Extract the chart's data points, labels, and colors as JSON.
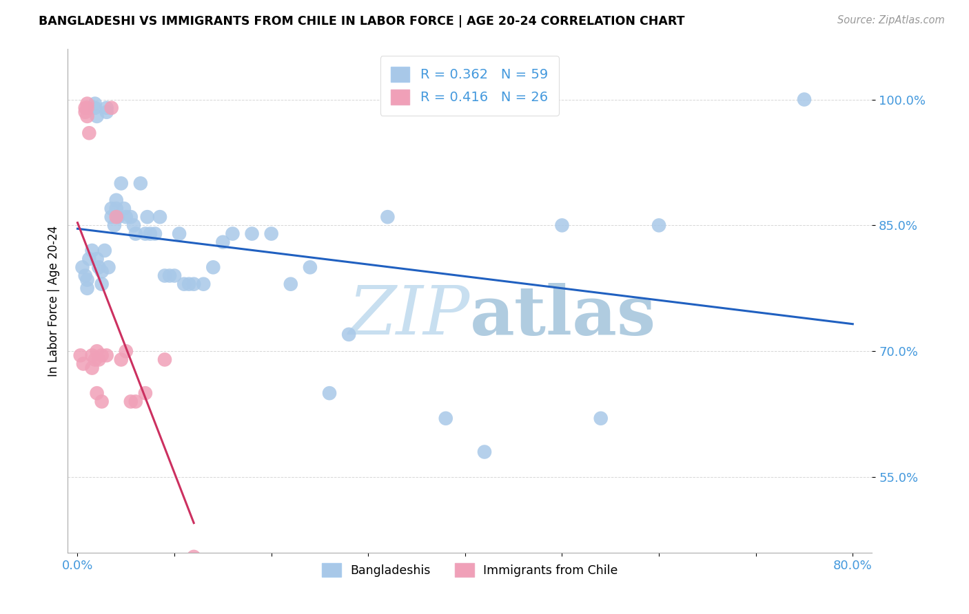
{
  "title": "BANGLADESHI VS IMMIGRANTS FROM CHILE IN LABOR FORCE | AGE 20-24 CORRELATION CHART",
  "source": "Source: ZipAtlas.com",
  "ylabel": "In Labor Force | Age 20-24",
  "xlim": [
    -0.01,
    0.82
  ],
  "ylim": [
    0.46,
    1.06
  ],
  "xtick_positions": [
    0.0,
    0.1,
    0.2,
    0.3,
    0.4,
    0.5,
    0.6,
    0.7,
    0.8
  ],
  "xticklabels": [
    "0.0%",
    "",
    "",
    "",
    "",
    "",
    "",
    "",
    "80.0%"
  ],
  "ytick_positions": [
    0.55,
    0.7,
    0.85,
    1.0
  ],
  "ytick_labels": [
    "55.0%",
    "70.0%",
    "85.0%",
    "100.0%"
  ],
  "blue_R": "0.362",
  "blue_N": "59",
  "pink_R": "0.416",
  "pink_N": "26",
  "legend_label_blue": "Bangladeshis",
  "legend_label_pink": "Immigrants from Chile",
  "blue_color": "#a8c8e8",
  "pink_color": "#f0a0b8",
  "blue_line_color": "#2060c0",
  "pink_line_color": "#cc3060",
  "axis_label_color": "#4499dd",
  "grid_color": "#cccccc",
  "blue_x": [
    0.005,
    0.008,
    0.01,
    0.01,
    0.012,
    0.015,
    0.018,
    0.018,
    0.02,
    0.02,
    0.022,
    0.025,
    0.025,
    0.028,
    0.03,
    0.03,
    0.032,
    0.035,
    0.035,
    0.038,
    0.04,
    0.04,
    0.042,
    0.045,
    0.048,
    0.05,
    0.055,
    0.058,
    0.06,
    0.065,
    0.07,
    0.072,
    0.075,
    0.08,
    0.085,
    0.09,
    0.095,
    0.1,
    0.105,
    0.11,
    0.115,
    0.12,
    0.13,
    0.14,
    0.15,
    0.16,
    0.18,
    0.2,
    0.22,
    0.24,
    0.26,
    0.28,
    0.32,
    0.38,
    0.42,
    0.5,
    0.54,
    0.6,
    0.75
  ],
  "blue_y": [
    0.8,
    0.79,
    0.785,
    0.775,
    0.81,
    0.82,
    0.995,
    0.99,
    0.98,
    0.81,
    0.8,
    0.795,
    0.78,
    0.82,
    0.99,
    0.985,
    0.8,
    0.87,
    0.86,
    0.85,
    0.88,
    0.87,
    0.86,
    0.9,
    0.87,
    0.86,
    0.86,
    0.85,
    0.84,
    0.9,
    0.84,
    0.86,
    0.84,
    0.84,
    0.86,
    0.79,
    0.79,
    0.79,
    0.84,
    0.78,
    0.78,
    0.78,
    0.78,
    0.8,
    0.83,
    0.84,
    0.84,
    0.84,
    0.78,
    0.8,
    0.65,
    0.72,
    0.86,
    0.62,
    0.58,
    0.85,
    0.62,
    0.85,
    1.0
  ],
  "pink_x": [
    0.003,
    0.006,
    0.008,
    0.008,
    0.01,
    0.01,
    0.01,
    0.012,
    0.015,
    0.015,
    0.018,
    0.02,
    0.02,
    0.022,
    0.025,
    0.025,
    0.03,
    0.035,
    0.04,
    0.045,
    0.05,
    0.055,
    0.06,
    0.07,
    0.09,
    0.12
  ],
  "pink_y": [
    0.695,
    0.685,
    0.99,
    0.985,
    0.995,
    0.99,
    0.98,
    0.96,
    0.695,
    0.68,
    0.69,
    0.7,
    0.65,
    0.69,
    0.695,
    0.64,
    0.695,
    0.99,
    0.86,
    0.69,
    0.7,
    0.64,
    0.64,
    0.65,
    0.69,
    0.455
  ],
  "blue_line_x0": 0.0,
  "blue_line_x1": 0.8,
  "pink_line_x0": 0.0,
  "pink_line_x1": 0.12,
  "watermark_zip_color": "#c8dff0",
  "watermark_atlas_color": "#b0cce0"
}
